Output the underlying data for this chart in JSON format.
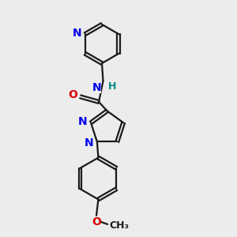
{
  "background_color": "#ececec",
  "bond_color": "#1a1a1a",
  "N_color": "#0000ee",
  "O_color": "#dd0000",
  "H_color": "#008888",
  "figsize": [
    3.0,
    3.0
  ],
  "dpi": 100,
  "xlim": [
    0,
    10
  ],
  "ylim": [
    0,
    10
  ],
  "lw": 1.6,
  "fs": 10
}
